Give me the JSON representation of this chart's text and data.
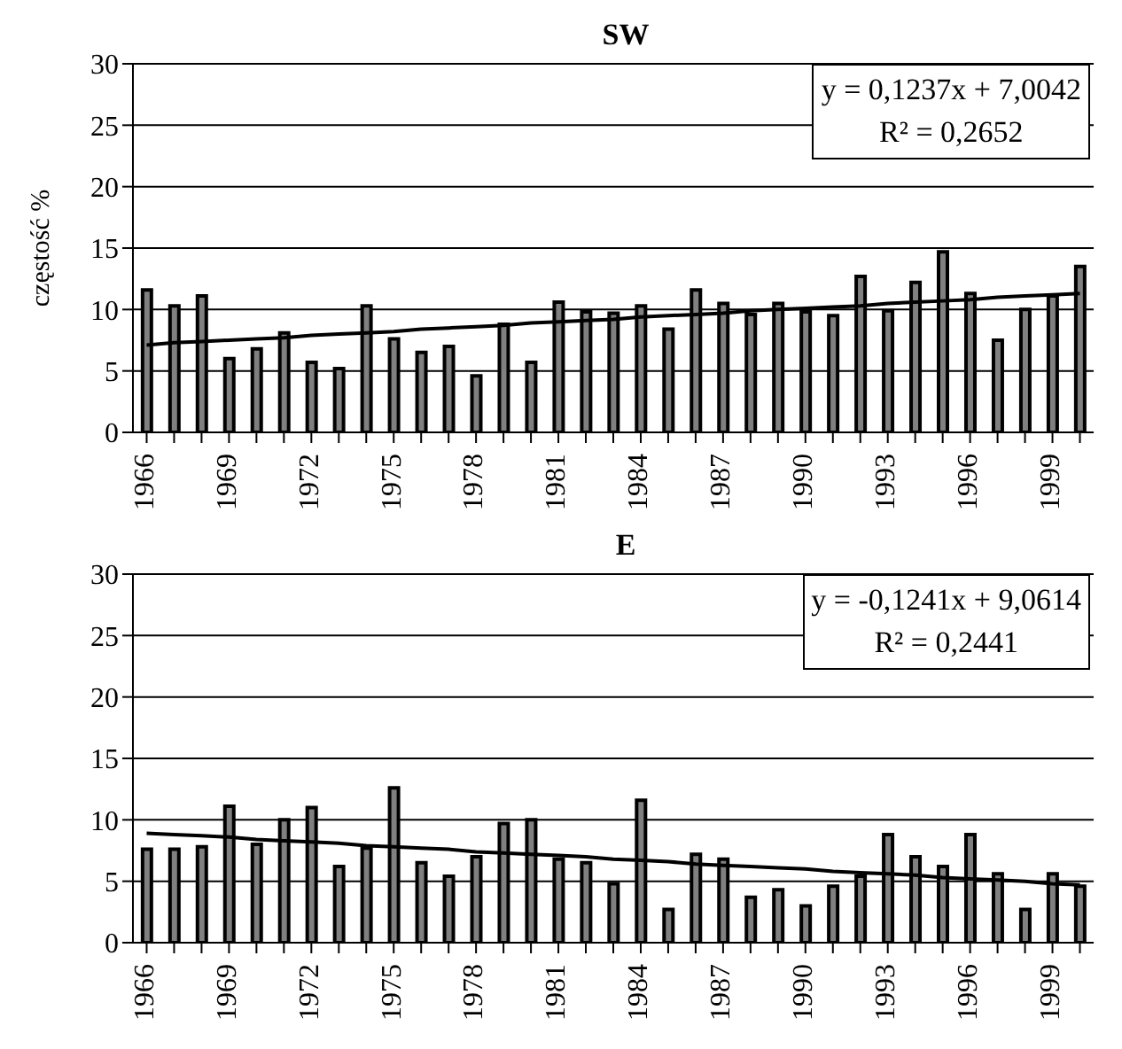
{
  "chart_data": [
    {
      "type": "bar",
      "title": "SW",
      "ylabel": "częstość %",
      "categories": [
        "1966",
        null,
        null,
        "1969",
        null,
        null,
        "1972",
        null,
        null,
        "1975",
        null,
        null,
        "1978",
        null,
        null,
        "1981",
        null,
        null,
        "1984",
        null,
        null,
        "1987",
        null,
        null,
        "1990",
        null,
        null,
        "1993",
        null,
        null,
        "1996",
        null,
        null,
        "1999",
        null
      ],
      "series": [
        {
          "color": "#808080",
          "values": [
            11.6,
            10.3,
            11.1,
            6.0,
            6.8,
            8.1,
            5.7,
            5.2,
            10.3,
            7.6,
            6.5,
            7.0,
            4.6,
            8.8,
            5.7,
            10.6,
            9.8,
            9.7,
            10.3,
            8.4,
            11.6,
            10.5,
            9.6,
            10.5,
            9.8,
            9.5,
            12.7,
            9.9,
            12.2,
            14.7,
            11.3,
            7.5,
            10.0,
            11.1,
            13.5
          ]
        },
        {
          "type": "line",
          "color": "#000000",
          "values": [
            7.1,
            7.3,
            7.4,
            7.5,
            7.6,
            7.7,
            7.9,
            8.0,
            8.1,
            8.2,
            8.4,
            8.5,
            8.6,
            8.7,
            8.9,
            9.0,
            9.1,
            9.2,
            9.4,
            9.5,
            9.6,
            9.7,
            9.9,
            10.0,
            10.1,
            10.2,
            10.3,
            10.5,
            10.6,
            10.7,
            10.8,
            11.0,
            11.1,
            11.2,
            11.3
          ]
        }
      ],
      "ylim": [
        0,
        30
      ],
      "yticks": [
        0,
        5,
        10,
        15,
        20,
        25,
        30
      ],
      "grid": "y",
      "annotations": [
        "y = 0,1237x + 7,0042",
        "R² = 0,2652"
      ]
    },
    {
      "type": "bar",
      "title": "E",
      "categories": [
        "1966",
        null,
        null,
        "1969",
        null,
        null,
        "1972",
        null,
        null,
        "1975",
        null,
        null,
        "1978",
        null,
        null,
        "1981",
        null,
        null,
        "1984",
        null,
        null,
        "1987",
        null,
        null,
        "1990",
        null,
        null,
        "1993",
        null,
        null,
        "1996",
        null,
        null,
        "1999",
        null
      ],
      "series": [
        {
          "color": "#808080",
          "values": [
            7.6,
            7.6,
            7.8,
            11.1,
            8.0,
            10.0,
            11.0,
            6.2,
            7.7,
            12.6,
            6.5,
            5.4,
            7.0,
            9.7,
            10.0,
            6.8,
            6.5,
            4.8,
            11.6,
            2.7,
            7.2,
            6.8,
            3.7,
            4.3,
            3.0,
            4.6,
            5.4,
            8.8,
            7.0,
            6.2,
            8.8,
            5.6,
            2.7,
            5.6,
            4.6
          ]
        },
        {
          "type": "line",
          "color": "#000000",
          "values": [
            8.9,
            8.8,
            8.7,
            8.6,
            8.4,
            8.3,
            8.2,
            8.1,
            7.9,
            7.8,
            7.7,
            7.6,
            7.4,
            7.3,
            7.2,
            7.1,
            7.0,
            6.8,
            6.7,
            6.6,
            6.4,
            6.3,
            6.2,
            6.1,
            6.0,
            5.8,
            5.7,
            5.6,
            5.5,
            5.3,
            5.2,
            5.1,
            5.0,
            4.8,
            4.7
          ]
        }
      ],
      "ylim": [
        0,
        30
      ],
      "yticks": [
        0,
        5,
        10,
        15,
        20,
        25,
        30
      ],
      "grid": "y",
      "annotations": [
        "y = -0,1241x + 9,0614",
        "R² = 0,2441"
      ]
    }
  ]
}
